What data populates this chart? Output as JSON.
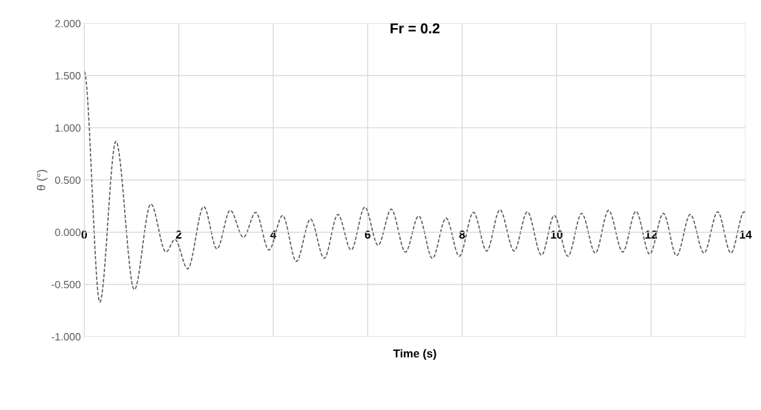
{
  "chart_data": {
    "type": "line",
    "title": "Fr = 0.2",
    "xlabel": "Time (s)",
    "ylabel": "θ (°)",
    "x": [
      0,
      0.33,
      0.67,
      1.06,
      1.41,
      1.73,
      1.92,
      2.19,
      2.53,
      2.81,
      3.09,
      3.37,
      3.63,
      3.91,
      4.2,
      4.49,
      4.79,
      5.08,
      5.37,
      5.65,
      5.94,
      6.22,
      6.5,
      6.8,
      7.08,
      7.37,
      7.66,
      7.94,
      8.24,
      8.52,
      8.8,
      9.1,
      9.38,
      9.68,
      9.95,
      10.24,
      10.53,
      10.82,
      11.1,
      11.4,
      11.68,
      11.97,
      12.26,
      12.54,
      12.83,
      13.12,
      13.41,
      13.69,
      13.97,
      14
    ],
    "series": [
      {
        "color": "#595959",
        "values": [
          1.54,
          -0.67,
          0.87,
          -0.55,
          0.27,
          -0.19,
          -0.07,
          -0.35,
          0.245,
          -0.16,
          0.21,
          -0.05,
          0.19,
          -0.17,
          0.16,
          -0.28,
          0.125,
          -0.25,
          0.17,
          -0.17,
          0.24,
          -0.125,
          0.22,
          -0.19,
          0.155,
          -0.25,
          0.135,
          -0.23,
          0.19,
          -0.18,
          0.215,
          -0.18,
          0.195,
          -0.22,
          0.16,
          -0.23,
          0.18,
          -0.2,
          0.21,
          -0.19,
          0.2,
          -0.21,
          0.18,
          -0.225,
          0.17,
          -0.2,
          0.195,
          -0.2,
          0.195,
          0.19
        ]
      }
    ],
    "xlim": [
      0,
      14
    ],
    "xticks": [
      0,
      2,
      4,
      6,
      8,
      10,
      12,
      14
    ],
    "ylim": [
      -1,
      2
    ],
    "yticks": [
      {
        "value": -1,
        "label": "-1.000"
      },
      {
        "value": -0.5,
        "label": "-0.500"
      },
      {
        "value": 0,
        "label": "0.000"
      },
      {
        "value": 0.5,
        "label": "0.500"
      },
      {
        "value": 1,
        "label": "1.000"
      },
      {
        "value": 1.5,
        "label": "1.500"
      },
      {
        "value": 2,
        "label": "2.000"
      }
    ],
    "grid": true,
    "line_style": "dashed",
    "marker": "none",
    "legend": false
  }
}
